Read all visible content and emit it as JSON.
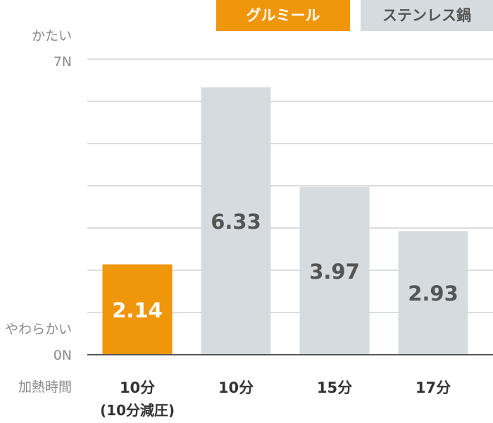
{
  "colors": {
    "gurumeal": "#f0960a",
    "steel": "#d5dbde",
    "grid": "#c8c8c8",
    "baseline": "#555555",
    "axis_text": "#8a8a8a",
    "category_text": "#333333",
    "label_on_orange": "#ffffff",
    "label_on_gray": "#555555"
  },
  "chart_data": {
    "type": "bar",
    "legend": [
      {
        "name": "グルミール",
        "color": "#f0960a"
      },
      {
        "name": "ステンレス鍋",
        "color": "#d5dbde"
      }
    ],
    "categories": [
      {
        "line1": "10分",
        "line2": "(10分減圧)"
      },
      {
        "line1": "10分",
        "line2": ""
      },
      {
        "line1": "15分",
        "line2": ""
      },
      {
        "line1": "17分",
        "line2": ""
      }
    ],
    "values": [
      2.14,
      6.33,
      3.97,
      2.93
    ],
    "value_labels": [
      "2.14",
      "6.33",
      "3.97",
      "2.93"
    ],
    "series_of_bar": [
      "グルミール",
      "ステンレス鍋",
      "ステンレス鍋",
      "ステンレス鍋"
    ],
    "ylim": [
      0,
      7
    ],
    "y_ticks": [
      0,
      1,
      2,
      3,
      4,
      5,
      6,
      7
    ],
    "y_top_caption": "かたい",
    "y_top_tick": "7N",
    "y_bottom_caption": "やわらかい",
    "y_bottom_tick": "0N",
    "x_axis_caption": "加熱時間",
    "grid": true,
    "legend_position": "top-right"
  }
}
